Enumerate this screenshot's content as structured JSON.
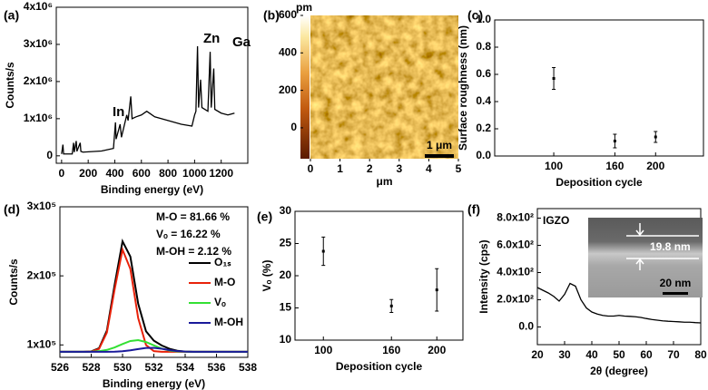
{
  "chart_data": [
    {
      "label": "(a)",
      "type": "line",
      "xlabel": "Binding energy (eV)",
      "ylabel": "Counts/s",
      "color": "#000000",
      "x": [
        0,
        10,
        15,
        80,
        90,
        95,
        110,
        115,
        140,
        145,
        160,
        300,
        390,
        405,
        410,
        440,
        450,
        490,
        500,
        520,
        530,
        560,
        600,
        640,
        660,
        700,
        800,
        900,
        980,
        1000,
        1010,
        1022,
        1030,
        1045,
        1055,
        1100,
        1117,
        1125,
        1144,
        1152,
        1200,
        1250,
        1300
      ],
      "values": [
        50000,
        300000,
        50000,
        50000,
        350000,
        100000,
        400000,
        120000,
        350000,
        120000,
        100000,
        130000,
        200000,
        900000,
        450000,
        850000,
        500000,
        1100000,
        950000,
        1600000,
        1000000,
        1050000,
        1100000,
        1200000,
        1150000,
        1050000,
        950000,
        850000,
        800000,
        1100000,
        1200000,
        2950000,
        1300000,
        2050000,
        1300000,
        1200000,
        2800000,
        1300000,
        2350000,
        1250000,
        1150000,
        1100000,
        1150000
      ],
      "xlim": [
        -40,
        1400
      ],
      "ylim": [
        -200000,
        4000000
      ],
      "xticks": [
        0,
        200,
        400,
        600,
        800,
        1000,
        1200
      ],
      "yticks": [
        0,
        {
          "value": 1000000,
          "label": "1x10⁶"
        },
        {
          "value": 2000000,
          "label": "2x10⁶"
        },
        {
          "value": 3000000,
          "label": "3x10⁶"
        },
        {
          "value": 4000000,
          "label": "4x10⁶"
        }
      ],
      "annotations": [
        "In",
        "Zn",
        "Ga"
      ]
    },
    {
      "label": "(b)",
      "type": "image",
      "xlabel": "μm",
      "xlim": [
        0,
        5
      ],
      "xticks": [
        0,
        1,
        2,
        3,
        4,
        5
      ],
      "colorbar_unit": "pm",
      "colorbar_lim": [
        -165,
        600
      ],
      "colorbar_ticks": [
        0,
        200,
        400,
        600
      ],
      "scalebar": "1 μm"
    },
    {
      "label": "(c)",
      "type": "scatter",
      "xlabel": "Deposition cycle",
      "ylabel": "Surface roughness (nm)",
      "color": "#000000",
      "x": [
        100,
        160,
        200
      ],
      "values": [
        0.57,
        0.11,
        0.14
      ],
      "errors": [
        0.08,
        0.05,
        0.04
      ],
      "xlim": [
        42,
        247
      ],
      "ylim": [
        0,
        1
      ],
      "xticks": [
        100,
        160,
        200
      ],
      "yticks": [
        {
          "value": 0,
          "label": "0.0"
        },
        0.2,
        0.4,
        0.6,
        0.8,
        {
          "value": 1,
          "label": "1.0"
        }
      ]
    },
    {
      "label": "(d)",
      "type": "line",
      "xlabel": "Binding energy (eV)",
      "ylabel": "Counts/s",
      "x": [
        526,
        526.5,
        527,
        527.5,
        528,
        528.5,
        529,
        529.5,
        530,
        530.5,
        531,
        531.5,
        532,
        532.5,
        533,
        533.5,
        534,
        534.5,
        535,
        535.5,
        536,
        536.5,
        537,
        537.5,
        538
      ],
      "series": [
        {
          "name": "O₁ₛ",
          "color": "#000000",
          "values": [
            90000,
            90000,
            90010,
            90063,
            90580,
            95250,
            120740,
            187590,
            250050,
            227810,
            159660,
            119740,
            106130,
            99210,
            94340,
            91590,
            90440,
            90100,
            90010,
            90000,
            90000,
            90000,
            90000,
            90000,
            90000
          ]
        },
        {
          "name": "M-O",
          "color": "#e8220a",
          "values": [
            90000,
            90000,
            90000,
            90013,
            90330,
            94290,
            117900,
            180980,
            237900,
            210000,
            138700,
            99860,
            91000,
            90050,
            90000,
            90000,
            90000,
            90000,
            90000,
            90000,
            90000,
            90000,
            90000,
            90000,
            90000
          ]
        },
        {
          "name": "Vₒ",
          "color": "#33e033",
          "values": [
            90000,
            90000,
            90010,
            90050,
            90250,
            90950,
            92790,
            96380,
            101340,
            105690,
            106920,
            104200,
            99280,
            94730,
            91870,
            90580,
            90140,
            90030,
            90000,
            90000,
            90000,
            90000,
            90000,
            90000,
            90000
          ]
        },
        {
          "name": "M-OH",
          "color": "#1a1a9a",
          "values": [
            90000,
            90000,
            90000,
            90000,
            90000,
            90007,
            90050,
            90230,
            90810,
            92120,
            94040,
            95680,
            95850,
            94430,
            92470,
            91010,
            90300,
            90070,
            90010,
            90000,
            90000,
            90000,
            90000,
            90000,
            90000
          ]
        }
      ],
      "xlim": [
        526,
        538
      ],
      "ylim": [
        82000,
        300000
      ],
      "xticks": [
        526,
        528,
        530,
        532,
        534,
        536,
        538
      ],
      "yticks": [
        {
          "value": 100000,
          "label": "1x10⁵"
        },
        {
          "value": 200000,
          "label": "2x10⁵"
        },
        {
          "value": 300000,
          "label": "3x10⁵"
        }
      ],
      "annotations": [
        "M-O = 81.66 %",
        "Vₒ = 16.22 %",
        "M-OH = 2.12 %"
      ]
    },
    {
      "label": "(e)",
      "type": "scatter",
      "xlabel": "Deposition cycle",
      "ylabel": "Vₒ (%)",
      "color": "#000000",
      "x": [
        100,
        160,
        200
      ],
      "values": [
        23.8,
        15.3,
        17.8
      ],
      "errors": [
        2.2,
        1.0,
        3.3
      ],
      "xlim": [
        75,
        223
      ],
      "ylim": [
        10,
        30
      ],
      "xticks": [
        100,
        160,
        200
      ],
      "yticks": [
        10,
        15,
        20,
        25,
        30
      ]
    },
    {
      "label": "(f)",
      "type": "line",
      "xlabel": "2θ (degree)",
      "ylabel": "Intensity (cps)",
      "color": "#000000",
      "x": [
        20,
        22,
        24,
        26,
        28,
        30,
        32,
        34,
        36,
        38,
        40,
        42,
        44,
        46,
        48,
        50,
        52,
        54,
        56,
        58,
        60,
        62,
        64,
        66,
        68,
        70,
        72,
        74,
        76,
        78,
        80
      ],
      "values": [
        290,
        270,
        250,
        225,
        190,
        240,
        320,
        300,
        200,
        140,
        110,
        95,
        85,
        80,
        80,
        85,
        80,
        78,
        75,
        70,
        62,
        55,
        50,
        45,
        42,
        40,
        38,
        35,
        35,
        32,
        30
      ],
      "xlim": [
        20,
        80
      ],
      "ylim": [
        -130,
        870
      ],
      "xticks": [
        20,
        30,
        40,
        50,
        60,
        70,
        80
      ],
      "yticks": [
        {
          "value": 0,
          "label": "0.0"
        },
        {
          "value": 200,
          "label": "2.0x10²"
        },
        {
          "value": 400,
          "label": "4.0x10²"
        },
        {
          "value": 600,
          "label": "6.0x10²"
        },
        {
          "value": 800,
          "label": "8.0x10²"
        }
      ],
      "sample_label": "IGZO",
      "inset_thickness": "19.8 nm",
      "inset_scalebar": "20 nm"
    }
  ]
}
